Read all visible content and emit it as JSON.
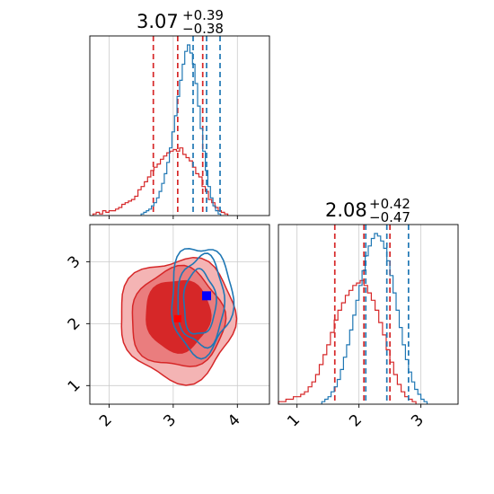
{
  "colors": {
    "red": "#d62728",
    "blue": "#1f77b4",
    "grid": "#cccccc",
    "pink_fill_light": "#f4b4b4",
    "pink_fill_mid": "#ea7d7e",
    "marker_blue": "#0000ff",
    "marker_red": "#ff0000"
  },
  "chart_data": [
    {
      "type": "histogram",
      "panel": "top-left marginal",
      "title": {
        "value": "3.07",
        "plus": "+0.39",
        "minus": "−0.38"
      },
      "xlim": [
        1.7,
        4.5
      ],
      "grid": true,
      "series": [
        {
          "color": "#d62728",
          "bins_start": 1.75,
          "bin_width": 0.05,
          "counts": [
            1,
            2,
            1,
            3,
            2,
            3,
            3,
            4,
            5,
            7,
            8,
            9,
            10,
            12,
            16,
            18,
            21,
            24,
            28,
            30,
            32,
            35,
            37,
            39,
            40,
            41,
            40,
            42,
            38,
            36,
            34,
            30,
            26,
            24,
            18,
            15,
            10,
            8,
            5,
            3,
            2,
            1
          ],
          "vlines": [
            2.69,
            3.07,
            3.46
          ]
        },
        {
          "color": "#1f77b4",
          "bins_start": 2.5,
          "bin_width": 0.04,
          "counts": [
            1,
            2,
            3,
            4,
            6,
            8,
            11,
            15,
            20,
            26,
            33,
            42,
            52,
            62,
            74,
            84,
            94,
            102,
            106,
            101,
            94,
            82,
            68,
            54,
            40,
            28,
            18,
            11,
            6,
            3,
            1
          ],
          "vlines": [
            3.31,
            3.52,
            3.73
          ]
        }
      ]
    },
    {
      "type": "contour",
      "panel": "bottom-left 2D",
      "xlim": [
        1.7,
        4.5
      ],
      "ylim": [
        0.7,
        3.6
      ],
      "xticks": [
        "2",
        "3",
        "4"
      ],
      "yticks": [
        "1",
        "2",
        "3"
      ],
      "grid": true,
      "series": [
        {
          "color": "#d62728",
          "center": [
            3.07,
            2.08
          ],
          "markers": [
            [
              3.07,
              2.08
            ]
          ]
        },
        {
          "color": "#1f77b4",
          "center": [
            3.52,
            2.45
          ],
          "markers": [
            [
              3.52,
              2.45
            ]
          ]
        }
      ]
    },
    {
      "type": "histogram",
      "panel": "bottom-right marginal",
      "title": {
        "value": "2.08",
        "plus": "+0.42",
        "minus": "−0.47"
      },
      "xlim": [
        0.7,
        3.6
      ],
      "xticks": [
        "1",
        "2",
        "3"
      ],
      "grid": true,
      "series": [
        {
          "color": "#d62728",
          "bins_start": 0.7,
          "bin_width": 0.06,
          "counts": [
            1,
            1,
            2,
            2,
            3,
            3,
            4,
            5,
            7,
            9,
            12,
            16,
            20,
            24,
            29,
            34,
            38,
            41,
            44,
            46,
            48,
            49,
            50,
            48,
            45,
            42,
            38,
            33,
            28,
            22,
            17,
            12,
            8,
            5,
            3,
            2,
            1
          ],
          "vlines": [
            1.61,
            2.08,
            2.5
          ]
        },
        {
          "color": "#1f77b4",
          "bins_start": 1.4,
          "bin_width": 0.05,
          "counts": [
            1,
            2,
            3,
            5,
            7,
            10,
            14,
            19,
            24,
            30,
            36,
            42,
            48,
            54,
            60,
            64,
            67,
            69,
            68,
            66,
            63,
            58,
            52,
            45,
            38,
            31,
            24,
            18,
            13,
            9,
            6,
            4,
            2,
            1
          ],
          "vlines": [
            2.11,
            2.45,
            2.8
          ]
        }
      ]
    }
  ]
}
